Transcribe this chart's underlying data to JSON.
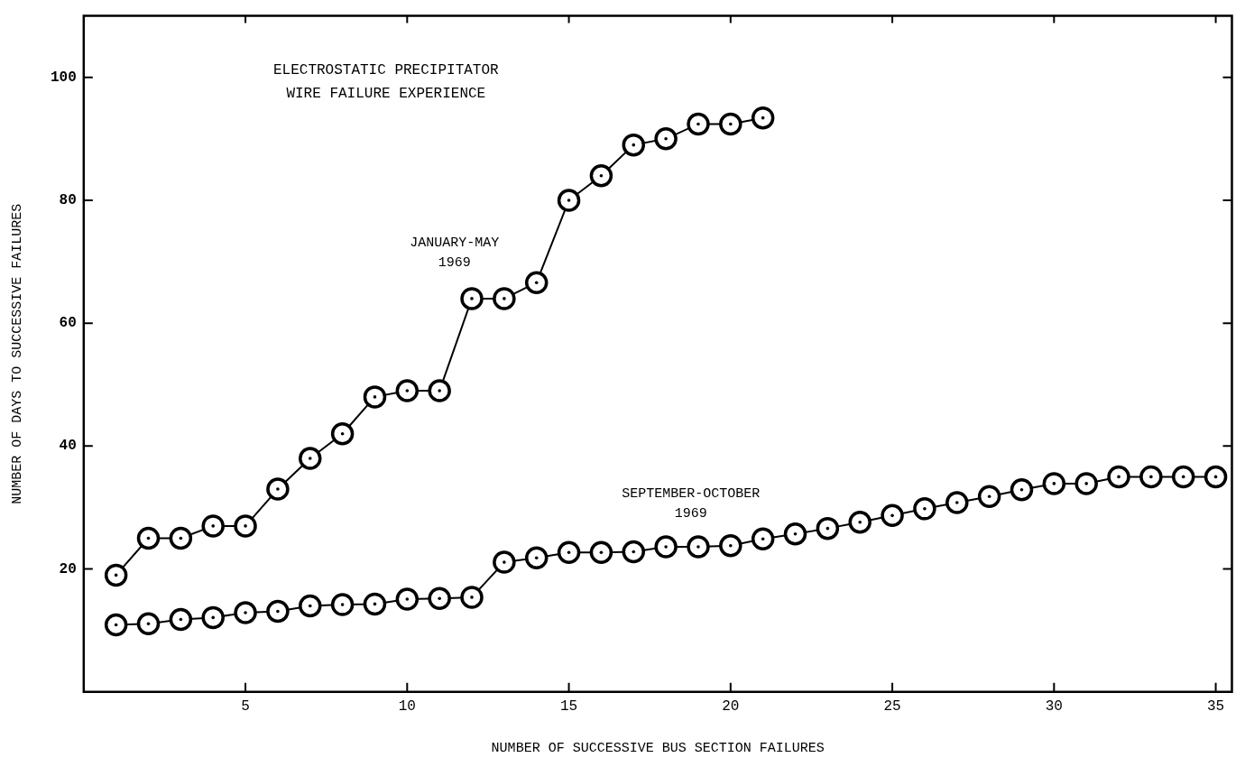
{
  "chart_data": {
    "type": "line",
    "title": "ELECTROSTATIC PRECIPITATOR\nWIRE FAILURE EXPERIENCE",
    "xlabel": "NUMBER OF SUCCESSIVE BUS SECTION FAILURES",
    "ylabel": "NUMBER OF DAYS TO SUCCESSIVE FAILURES",
    "xlim": [
      0,
      35.5
    ],
    "xticks": [
      5,
      10,
      15,
      20,
      25,
      30,
      35
    ],
    "ylim": [
      0,
      110
    ],
    "yticks": [
      20,
      40,
      60,
      80,
      100
    ],
    "grid": false,
    "legend": false,
    "marker": "circle",
    "line_style": "solid",
    "series": [
      {
        "name": "JANUARY-MAY 1969",
        "color": "#000000",
        "x": [
          1,
          2,
          3,
          4,
          5,
          6,
          7,
          8,
          9,
          10,
          11,
          12,
          13,
          14,
          15,
          16,
          17,
          18,
          19,
          20,
          21
        ],
        "values": [
          19,
          25,
          25,
          27,
          27,
          33,
          38,
          42,
          48,
          49,
          49,
          64,
          64,
          66.6,
          80,
          84,
          89,
          90,
          92.4,
          92.4,
          93.4
        ]
      },
      {
        "name": "SEPTEMBER-OCTOBER 1969",
        "color": "#000000",
        "x": [
          1,
          2,
          3,
          4,
          5,
          6,
          7,
          8,
          9,
          10,
          11,
          12,
          13,
          14,
          15,
          16,
          17,
          18,
          19,
          20,
          21,
          22,
          23,
          24,
          25,
          26,
          27,
          28,
          29,
          30,
          31,
          32,
          33,
          34,
          35
        ],
        "values": [
          10.9,
          11.1,
          11.8,
          12.1,
          12.9,
          13.1,
          14,
          14.2,
          14.3,
          15.1,
          15.2,
          15.4,
          21.1,
          21.8,
          22.7,
          22.7,
          22.8,
          23.6,
          23.6,
          23.8,
          24.9,
          25.7,
          26.6,
          27.6,
          28.7,
          29.8,
          30.8,
          31.8,
          32.9,
          33.9,
          33.9,
          35,
          35,
          35,
          35
        ]
      }
    ]
  }
}
